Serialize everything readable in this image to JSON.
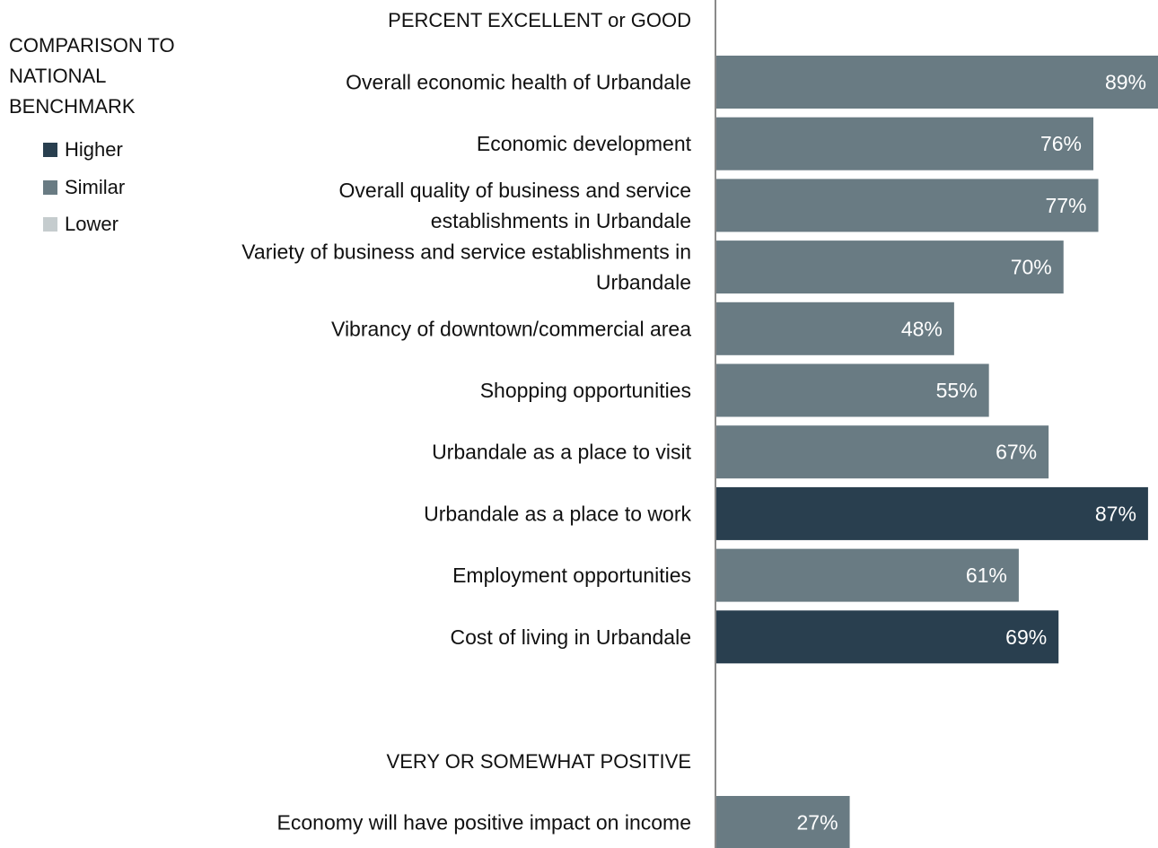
{
  "chart_data": {
    "type": "bar",
    "orientation": "horizontal",
    "xlim": [
      0,
      89
    ],
    "legend": {
      "title": "COMPARISON TO\nNATIONAL\nBENCHMARK",
      "placement": "top-left",
      "items": [
        {
          "label": "Higher",
          "color": "#293f4f"
        },
        {
          "label": "Similar",
          "color": "#697b83"
        },
        {
          "label": "Lower",
          "color": "#c5ccce"
        }
      ]
    },
    "groups": [
      {
        "heading": "PERCENT EXCELLENT or GOOD",
        "bars": [
          {
            "label": "Overall economic health of Urbandale",
            "value": 89,
            "value_label": "89%",
            "benchmark": "Similar"
          },
          {
            "label": "Economic development",
            "value": 76,
            "value_label": "76%",
            "benchmark": "Similar"
          },
          {
            "label": "Overall quality of business and service\nestablishments in Urbandale",
            "value": 77,
            "value_label": "77%",
            "benchmark": "Similar"
          },
          {
            "label": "Variety of business and service establishments in\nUrbandale",
            "value": 70,
            "value_label": "70%",
            "benchmark": "Similar"
          },
          {
            "label": "Vibrancy of downtown/commercial area",
            "value": 48,
            "value_label": "48%",
            "benchmark": "Similar"
          },
          {
            "label": "Shopping opportunities",
            "value": 55,
            "value_label": "55%",
            "benchmark": "Similar"
          },
          {
            "label": "Urbandale as a place to visit",
            "value": 67,
            "value_label": "67%",
            "benchmark": "Similar"
          },
          {
            "label": "Urbandale as a place to work",
            "value": 87,
            "value_label": "87%",
            "benchmark": "Higher"
          },
          {
            "label": "Employment opportunities",
            "value": 61,
            "value_label": "61%",
            "benchmark": "Similar"
          },
          {
            "label": "Cost of living in Urbandale",
            "value": 69,
            "value_label": "69%",
            "benchmark": "Higher"
          }
        ]
      },
      {
        "heading": "VERY OR SOMEWHAT POSITIVE",
        "bars": [
          {
            "label": "Economy will have positive impact on income",
            "value": 27,
            "value_label": "27%",
            "benchmark": "Similar"
          }
        ]
      }
    ]
  }
}
